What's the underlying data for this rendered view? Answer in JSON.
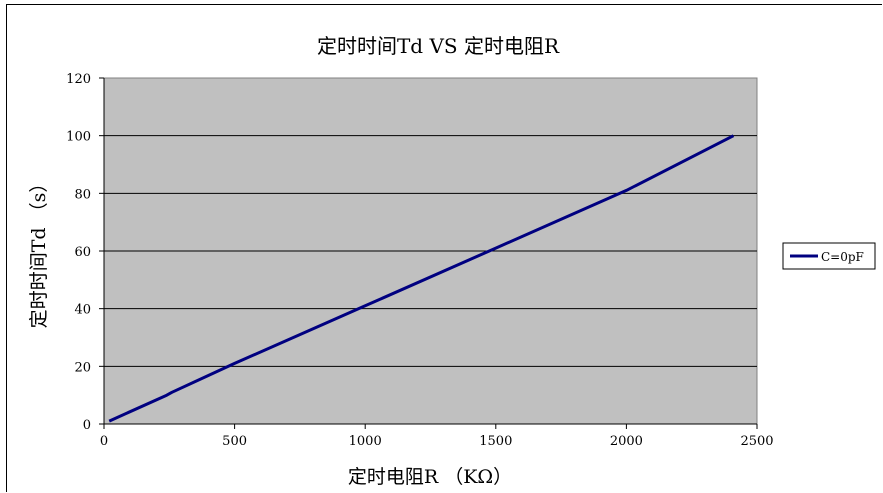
{
  "chart_data": {
    "type": "line",
    "title": "定时时间Td   VS   定时电阻R",
    "xlabel": "定时电阻R  （KΩ）",
    "ylabel": "定时时间Td （s）",
    "xlim": [
      0,
      2500
    ],
    "ylim": [
      0,
      120
    ],
    "x_ticks": [
      "0",
      "500",
      "1000",
      "1500",
      "2000",
      "2500"
    ],
    "y_ticks": [
      "0",
      "20",
      "40",
      "60",
      "80",
      "100",
      "120"
    ],
    "grid": true,
    "legend_position": "right",
    "plot_background": "#c0c0c0",
    "series": [
      {
        "name": "C=0pF",
        "color": "#000080",
        "x": [
          20,
          240,
          260,
          500,
          1000,
          1500,
          2000,
          2410
        ],
        "y": [
          1,
          10,
          11,
          21,
          41,
          61,
          81,
          100
        ]
      }
    ]
  }
}
